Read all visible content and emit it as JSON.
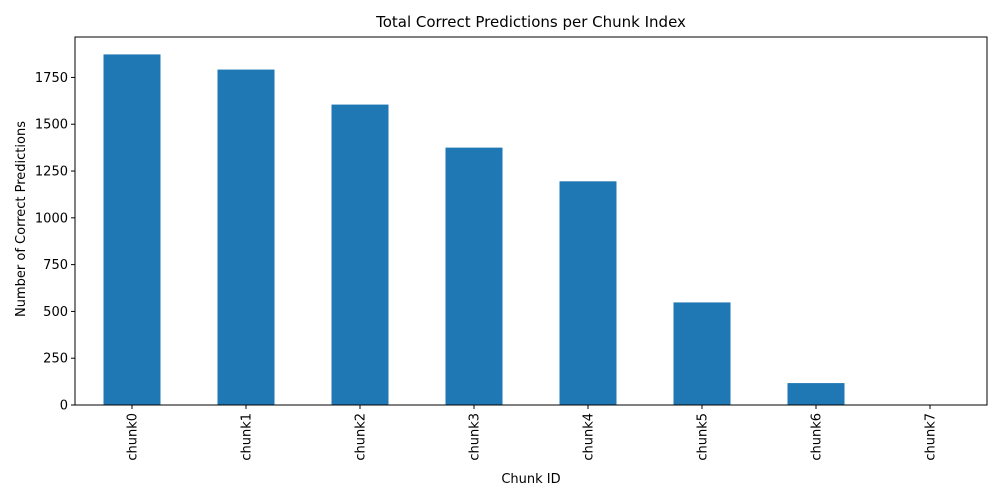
{
  "chart_data": {
    "type": "bar",
    "title": "Total Correct Predictions per Chunk Index",
    "xlabel": "Chunk ID",
    "ylabel": "Number of Correct Predictions",
    "categories": [
      "chunk0",
      "chunk1",
      "chunk2",
      "chunk3",
      "chunk4",
      "chunk5",
      "chunk6",
      "chunk7"
    ],
    "values": [
      1873,
      1792,
      1605,
      1375,
      1195,
      548,
      117,
      0
    ],
    "ylim": [
      0,
      1966
    ],
    "yticks": [
      0,
      250,
      500,
      750,
      1000,
      1250,
      1500,
      1750
    ],
    "grid": false,
    "legend": "none",
    "bar_color": "#1f77b4"
  }
}
